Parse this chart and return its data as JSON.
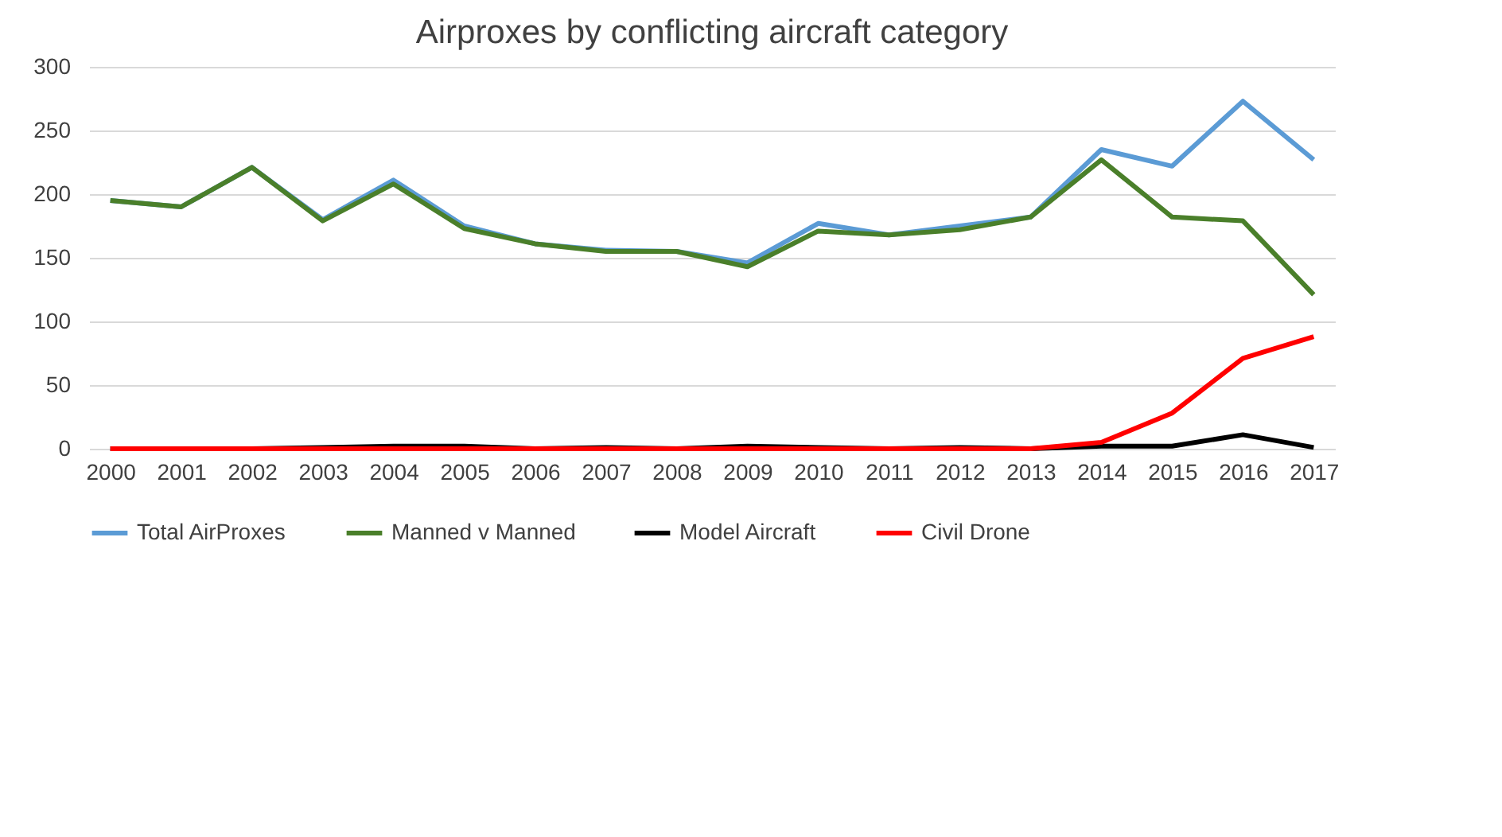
{
  "chart_data": {
    "type": "line",
    "title": "Airproxes by conflicting aircraft category",
    "categories": [
      "2000",
      "2001",
      "2002",
      "2003",
      "2004",
      "2005",
      "2006",
      "2007",
      "2008",
      "2009",
      "2010",
      "2011",
      "2012",
      "2013",
      "2014",
      "2015",
      "2016",
      "2017"
    ],
    "series": [
      {
        "name": "Total AirProxes",
        "color": "#5b9bd5",
        "values": [
          195,
          190,
          221,
          180,
          211,
          175,
          161,
          156,
          155,
          146,
          177,
          168,
          175,
          182,
          235,
          222,
          273,
          227
        ]
      },
      {
        "name": "Manned v Manned",
        "color": "#4a7f2a",
        "values": [
          195,
          190,
          221,
          179,
          208,
          173,
          161,
          155,
          155,
          143,
          171,
          168,
          172,
          182,
          227,
          182,
          179,
          121
        ]
      },
      {
        "name": "Model Aircraft",
        "color": "#000000",
        "values": [
          0,
          0,
          0,
          1,
          2,
          2,
          0,
          1,
          0,
          2,
          1,
          0,
          1,
          0,
          2,
          2,
          11,
          1
        ]
      },
      {
        "name": "Civil Drone",
        "color": "#ff0000",
        "values": [
          0,
          0,
          0,
          0,
          0,
          0,
          0,
          0,
          0,
          0,
          0,
          0,
          0,
          0,
          5,
          28,
          71,
          88
        ]
      }
    ],
    "ylim": [
      0,
      300
    ],
    "yticks": [
      0,
      50,
      100,
      150,
      200,
      250,
      300
    ],
    "grid": "y",
    "legend": "bottom",
    "marker": "none",
    "line_style": "solid"
  }
}
